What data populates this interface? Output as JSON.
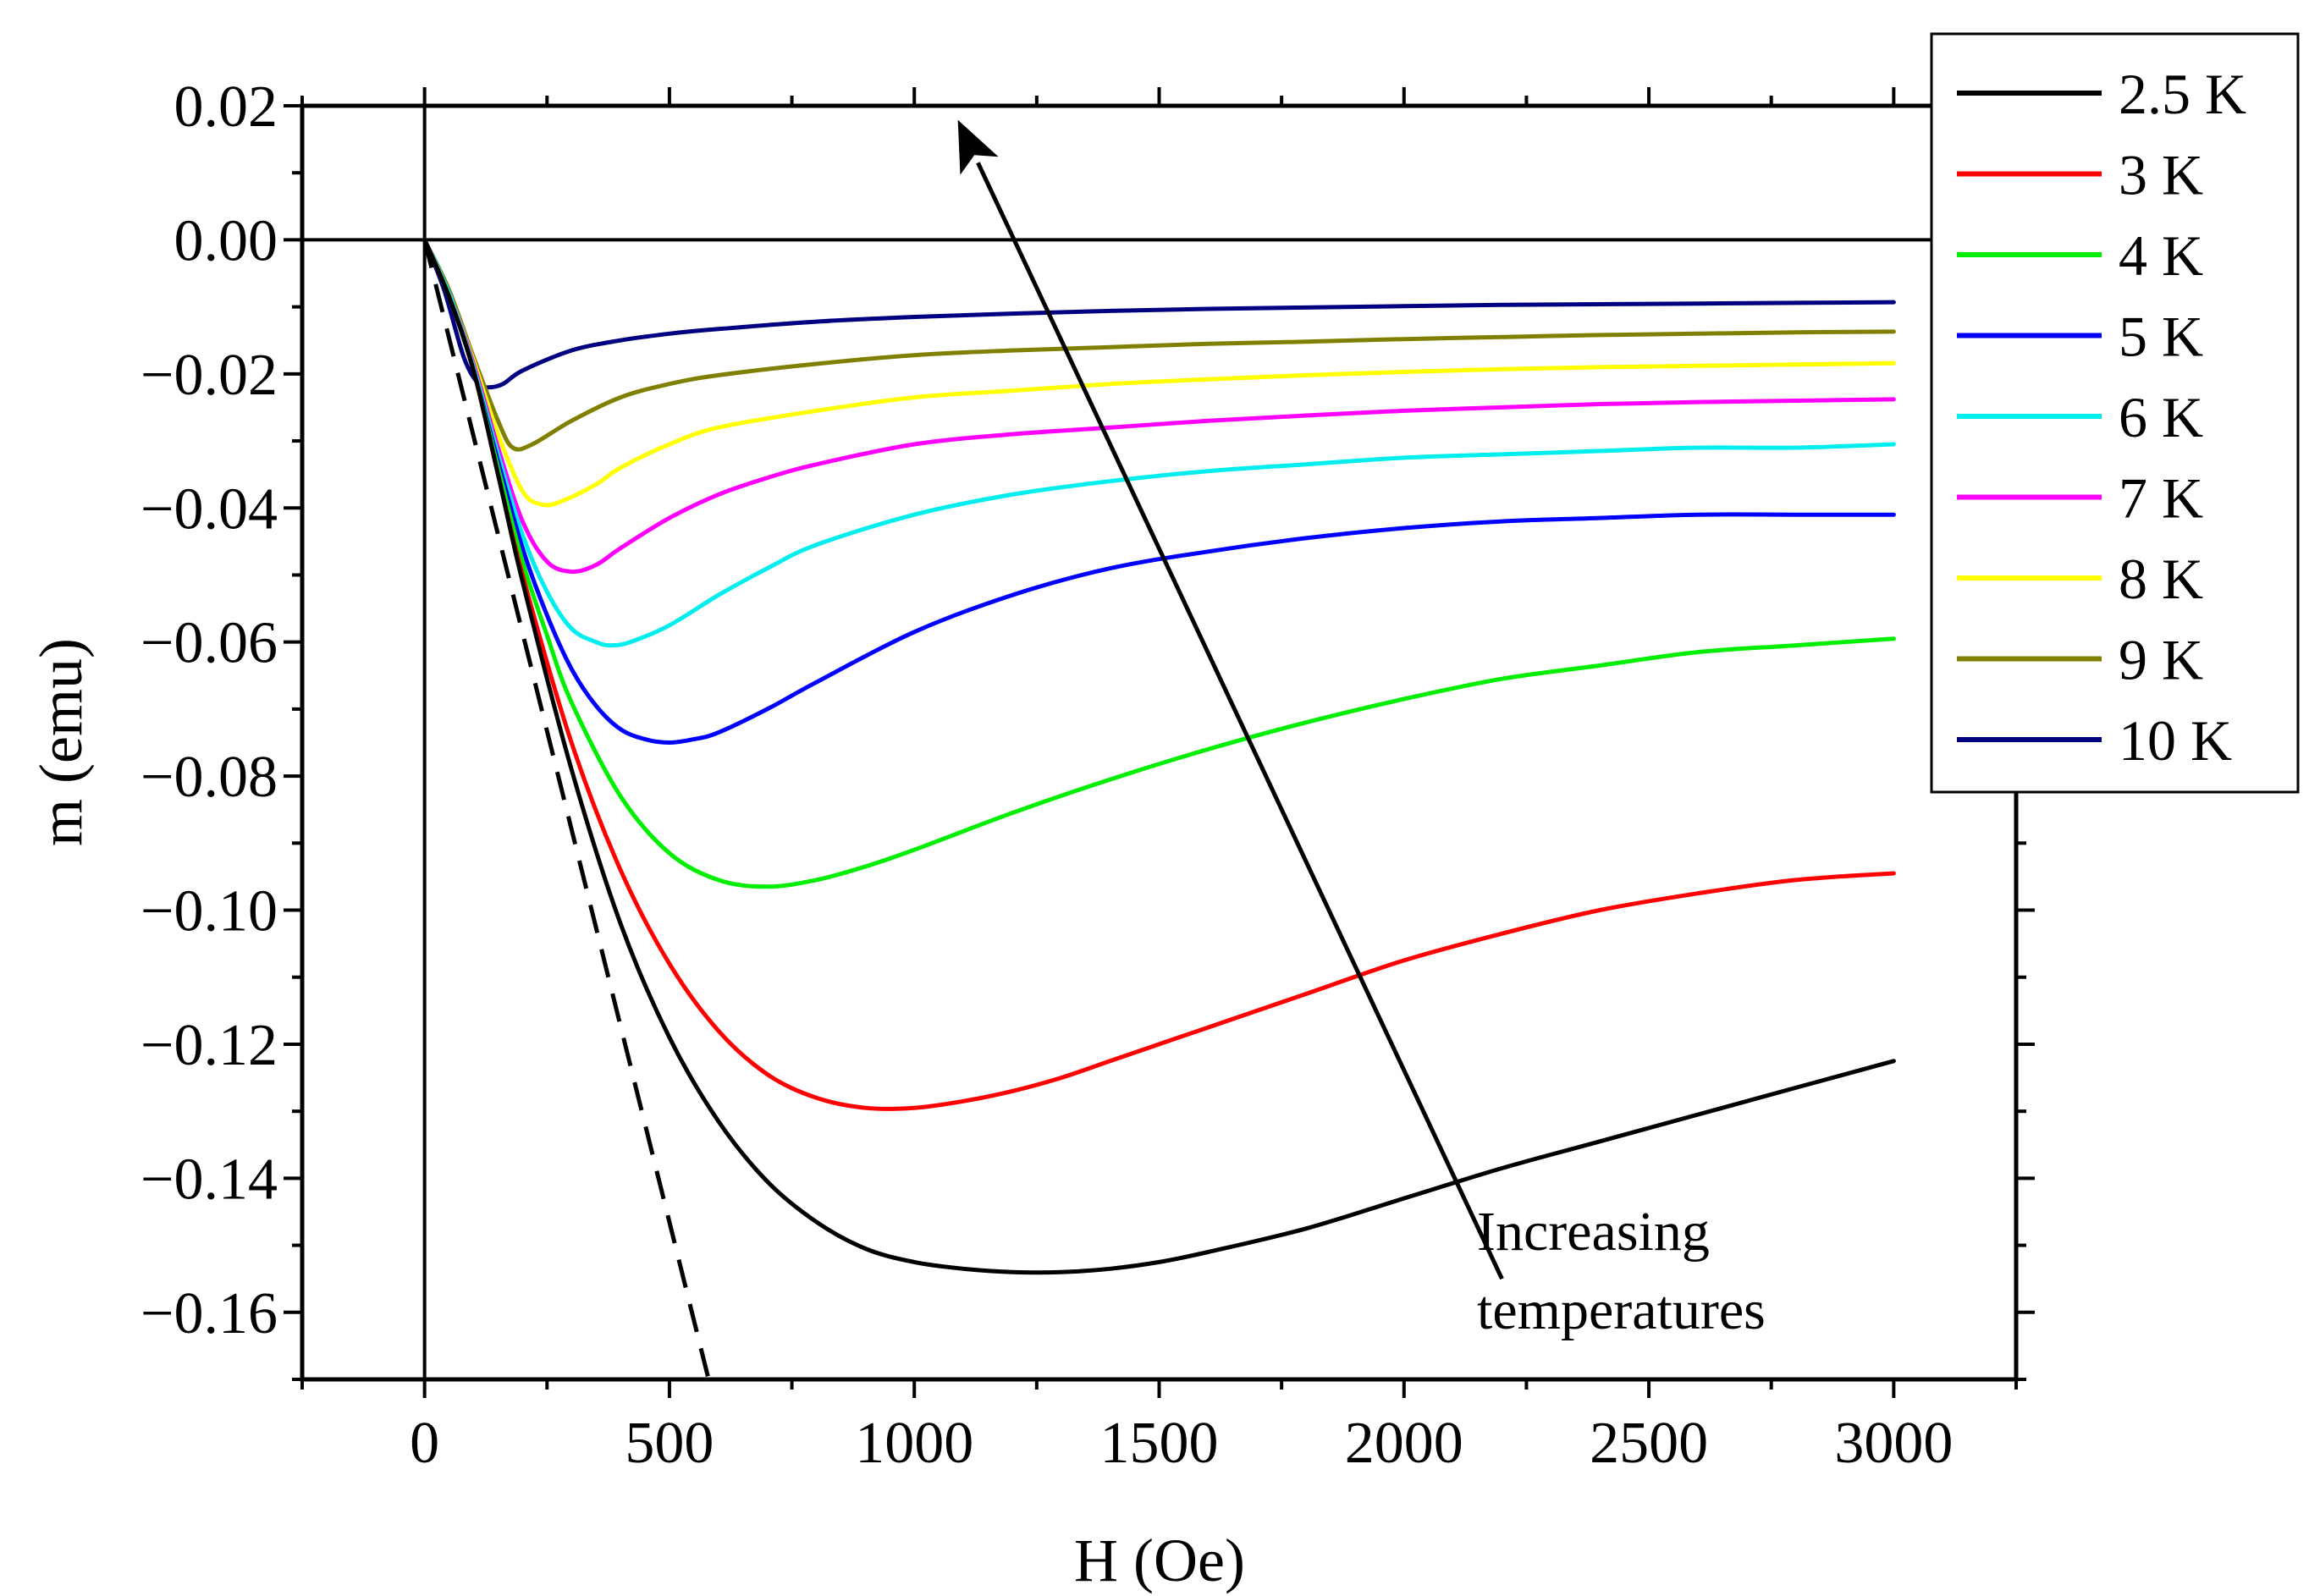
{
  "chart_data": {
    "type": "line",
    "title": "",
    "xlabel": "H (Oe)",
    "ylabel": "m (emu)",
    "xlim": [
      -250,
      3250
    ],
    "ylim": [
      -0.17,
      0.02
    ],
    "xticks": [
      0,
      500,
      1000,
      1500,
      2000,
      2500,
      3000
    ],
    "xtick_labels": [
      "0",
      "500",
      "1000",
      "1500",
      "2000",
      "2500",
      "3000"
    ],
    "yticks": [
      0.02,
      0.0,
      -0.02,
      -0.04,
      -0.06,
      -0.08,
      -0.1,
      -0.12,
      -0.14,
      -0.16
    ],
    "ytick_labels": [
      "0.02",
      "0.00",
      "−0.02",
      "−0.04",
      "−0.06",
      "−0.08",
      "−0.10",
      "−0.12",
      "−0.14",
      "−0.16"
    ],
    "grid": false,
    "legend_position": "top-right",
    "reference_lines": [
      {
        "name": "zero-field",
        "x": 0
      },
      {
        "name": "zero-moment",
        "y": 0
      }
    ],
    "series": [
      {
        "name": "2.5 K",
        "color": "#000000",
        "x": [
          0,
          50,
          100,
          150,
          200,
          300,
          400,
          500,
          600,
          700,
          800,
          900,
          1000,
          1100,
          1200,
          1300,
          1400,
          1500,
          1600,
          1800,
          2000,
          2200,
          2400,
          2600,
          2800,
          3000
        ],
        "y": [
          0,
          -0.0085,
          -0.0195,
          -0.035,
          -0.051,
          -0.079,
          -0.102,
          -0.119,
          -0.1315,
          -0.1405,
          -0.1465,
          -0.1505,
          -0.1525,
          -0.1535,
          -0.154,
          -0.154,
          -0.1535,
          -0.1525,
          -0.151,
          -0.1475,
          -0.143,
          -0.1385,
          -0.1345,
          -0.1305,
          -0.1265,
          -0.1225
        ]
      },
      {
        "name": "3 K",
        "color": "#ff0000",
        "x": [
          0,
          50,
          100,
          150,
          200,
          300,
          400,
          500,
          600,
          700,
          800,
          900,
          1000,
          1100,
          1200,
          1300,
          1400,
          1500,
          1600,
          1800,
          2000,
          2200,
          2400,
          2600,
          2800,
          3000
        ],
        "y": [
          0,
          -0.0085,
          -0.0195,
          -0.035,
          -0.05,
          -0.075,
          -0.094,
          -0.108,
          -0.118,
          -0.1245,
          -0.128,
          -0.1295,
          -0.1295,
          -0.1285,
          -0.127,
          -0.125,
          -0.1225,
          -0.12,
          -0.1175,
          -0.1125,
          -0.1075,
          -0.1035,
          -0.1,
          -0.0975,
          -0.0955,
          -0.0945
        ]
      },
      {
        "name": "4 K",
        "color": "#00ee00",
        "x": [
          0,
          50,
          100,
          150,
          200,
          250,
          300,
          400,
          500,
          600,
          700,
          800,
          900,
          1000,
          1200,
          1400,
          1600,
          1800,
          2000,
          2200,
          2400,
          2600,
          2800,
          3000
        ],
        "y": [
          0,
          -0.0085,
          -0.0195,
          -0.034,
          -0.048,
          -0.059,
          -0.069,
          -0.083,
          -0.0915,
          -0.0955,
          -0.0965,
          -0.0955,
          -0.0935,
          -0.091,
          -0.0855,
          -0.0805,
          -0.076,
          -0.072,
          -0.0685,
          -0.0655,
          -0.0635,
          -0.0615,
          -0.0605,
          -0.0595
        ]
      },
      {
        "name": "5 K",
        "color": "#0000ff",
        "x": [
          0,
          50,
          100,
          150,
          200,
          250,
          300,
          350,
          400,
          450,
          500,
          550,
          600,
          700,
          800,
          1000,
          1200,
          1400,
          1600,
          1800,
          2000,
          2200,
          2400,
          2600,
          2800,
          3000
        ],
        "y": [
          0,
          -0.0085,
          -0.0195,
          -0.033,
          -0.046,
          -0.056,
          -0.064,
          -0.0695,
          -0.073,
          -0.0745,
          -0.075,
          -0.0745,
          -0.0735,
          -0.07,
          -0.066,
          -0.0585,
          -0.053,
          -0.049,
          -0.0465,
          -0.0445,
          -0.043,
          -0.042,
          -0.0415,
          -0.041,
          -0.041,
          -0.041
        ]
      },
      {
        "name": "6 K",
        "color": "#00eeee",
        "x": [
          0,
          50,
          100,
          150,
          200,
          250,
          300,
          350,
          380,
          420,
          500,
          600,
          700,
          800,
          1000,
          1200,
          1400,
          1600,
          1800,
          2000,
          2200,
          2400,
          2600,
          2800,
          3000
        ],
        "y": [
          0,
          -0.008,
          -0.019,
          -0.032,
          -0.044,
          -0.0525,
          -0.058,
          -0.06,
          -0.0605,
          -0.06,
          -0.0575,
          -0.053,
          -0.049,
          -0.0455,
          -0.041,
          -0.038,
          -0.036,
          -0.0345,
          -0.0335,
          -0.0325,
          -0.032,
          -0.0315,
          -0.031,
          -0.031,
          -0.0305
        ]
      },
      {
        "name": "7 K",
        "color": "#ff00ff",
        "x": [
          0,
          50,
          100,
          150,
          200,
          250,
          300,
          350,
          400,
          500,
          600,
          700,
          800,
          1000,
          1200,
          1400,
          1600,
          1800,
          2000,
          2200,
          2400,
          2600,
          2800,
          3000
        ],
        "y": [
          0,
          -0.008,
          -0.0185,
          -0.031,
          -0.042,
          -0.048,
          -0.0495,
          -0.0485,
          -0.046,
          -0.0415,
          -0.038,
          -0.0355,
          -0.0335,
          -0.0305,
          -0.029,
          -0.028,
          -0.027,
          -0.0262,
          -0.0255,
          -0.025,
          -0.0245,
          -0.0242,
          -0.024,
          -0.0238
        ]
      },
      {
        "name": "8 K",
        "color": "#ffff00",
        "x": [
          0,
          50,
          100,
          150,
          200,
          240,
          280,
          350,
          400,
          500,
          600,
          800,
          1000,
          1200,
          1400,
          1600,
          1800,
          2000,
          2200,
          2400,
          2600,
          2800,
          3000
        ],
        "y": [
          0,
          -0.008,
          -0.018,
          -0.029,
          -0.0375,
          -0.0395,
          -0.039,
          -0.0365,
          -0.034,
          -0.0305,
          -0.028,
          -0.0255,
          -0.0235,
          -0.0225,
          -0.0215,
          -0.0208,
          -0.0202,
          -0.0197,
          -0.0193,
          -0.019,
          -0.0188,
          -0.0186,
          -0.0184
        ]
      },
      {
        "name": "9 K",
        "color": "#808000",
        "x": [
          0,
          50,
          100,
          150,
          180,
          220,
          300,
          400,
          500,
          600,
          800,
          1000,
          1200,
          1400,
          1600,
          1800,
          2000,
          2200,
          2400,
          2600,
          2800,
          3000
        ],
        "y": [
          0,
          -0.0075,
          -0.0175,
          -0.027,
          -0.031,
          -0.0305,
          -0.027,
          -0.0235,
          -0.0215,
          -0.0202,
          -0.0185,
          -0.0172,
          -0.0165,
          -0.016,
          -0.0155,
          -0.0152,
          -0.0148,
          -0.0145,
          -0.0142,
          -0.014,
          -0.0138,
          -0.0137
        ]
      },
      {
        "name": "10 K",
        "color": "#000080",
        "x": [
          0,
          40,
          80,
          110,
          130,
          160,
          200,
          300,
          400,
          500,
          600,
          800,
          1000,
          1200,
          1400,
          1600,
          1800,
          2000,
          2200,
          2400,
          2600,
          2800,
          3000
        ],
        "y": [
          0,
          -0.0075,
          -0.0175,
          -0.0215,
          -0.022,
          -0.0215,
          -0.0195,
          -0.0165,
          -0.015,
          -0.014,
          -0.0133,
          -0.0122,
          -0.0115,
          -0.011,
          -0.0106,
          -0.0103,
          -0.0101,
          -0.0099,
          -0.0097,
          -0.0096,
          -0.0095,
          -0.0094,
          -0.0093
        ]
      }
    ],
    "dashed_line": {
      "name": "initial slope",
      "x": [
        0,
        580
      ],
      "y": [
        0,
        -0.17
      ]
    },
    "arrow": {
      "from": [
        2200,
        -0.155
      ],
      "to": [
        1130,
        0.0115
      ]
    },
    "annotation": [
      "Increasing",
      "temperatures"
    ]
  }
}
